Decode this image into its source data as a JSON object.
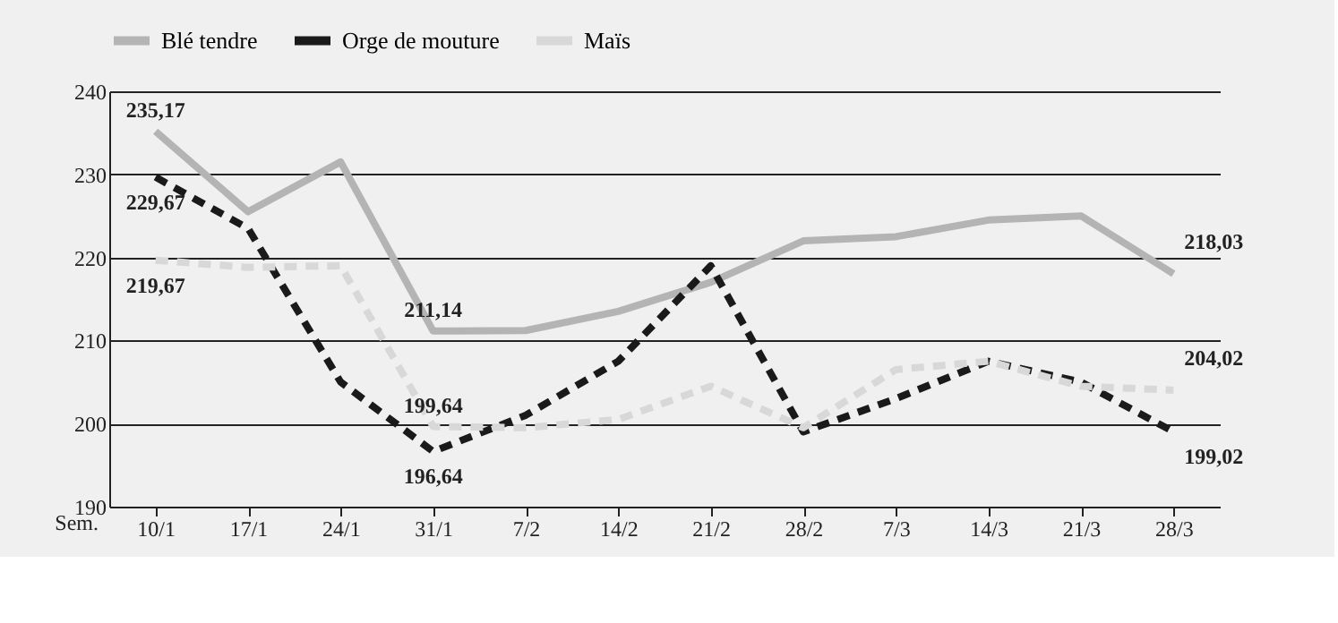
{
  "chart_data": {
    "type": "line",
    "xlabel": "Sem.",
    "categories": [
      "10/1",
      "17/1",
      "24/1",
      "31/1",
      "7/2",
      "14/2",
      "21/2",
      "28/2",
      "7/3",
      "14/3",
      "21/3",
      "28/3"
    ],
    "series": [
      {
        "name": "Blé tendre",
        "color": "#b4b4b4",
        "line_style": "solid",
        "values": [
          235.17,
          225.5,
          231.5,
          211.14,
          211.2,
          213.5,
          217,
          222,
          222.5,
          224.5,
          225,
          218.03
        ],
        "value_labels": [
          "235,17",
          null,
          null,
          "211,14",
          null,
          null,
          null,
          null,
          null,
          null,
          null,
          "218,03"
        ]
      },
      {
        "name": "Orge de mouture",
        "color": "#1a1a1a",
        "line_style": "dashed",
        "values": [
          229.67,
          223.5,
          205,
          196.64,
          201,
          207.5,
          219,
          199,
          203,
          207.5,
          205,
          199.02
        ],
        "value_labels": [
          "229,67",
          null,
          null,
          "196,64",
          null,
          null,
          null,
          null,
          null,
          null,
          null,
          "199,02"
        ]
      },
      {
        "name": "Maïs",
        "color": "#d8d8d8",
        "line_style": "dashed",
        "values": [
          219.67,
          218.8,
          219,
          199.64,
          199.5,
          200.5,
          204.5,
          199.5,
          206.5,
          207.5,
          204.5,
          204.02
        ],
        "value_labels": [
          "219,67",
          null,
          null,
          "199,64",
          null,
          null,
          null,
          null,
          null,
          null,
          null,
          "204,02"
        ]
      }
    ],
    "ylim": [
      190,
      240
    ],
    "yticks": [
      190,
      200,
      210,
      220,
      230,
      240
    ],
    "grid": "y",
    "legend": "top",
    "marker": "none"
  }
}
